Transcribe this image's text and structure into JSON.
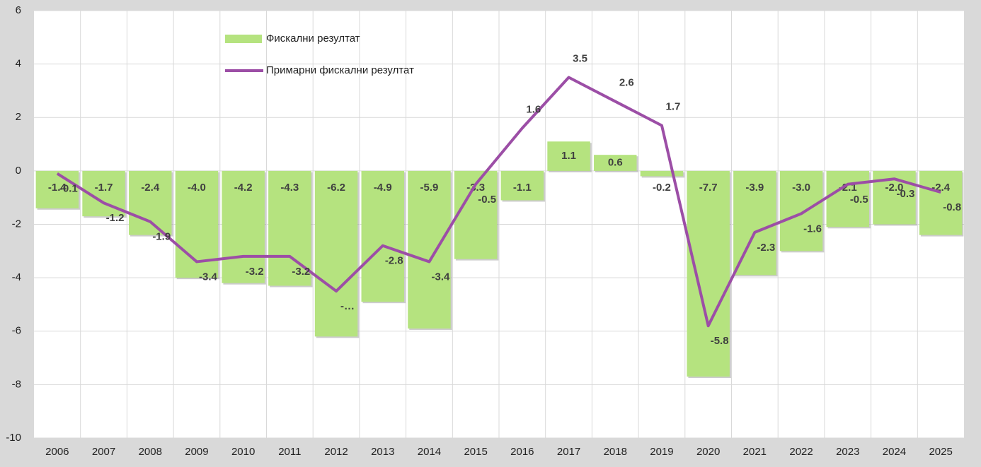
{
  "chart_data": {
    "type": "bar-line",
    "categories": [
      "2006",
      "2007",
      "2008",
      "2009",
      "2010",
      "2011",
      "2012",
      "2013",
      "2014",
      "2015",
      "2016",
      "2017",
      "2018",
      "2019",
      "2020",
      "2021",
      "2022",
      "2023",
      "2024",
      "2025"
    ],
    "series": [
      {
        "name": "Фискални резултат",
        "type": "bar",
        "color": "#b5e37f",
        "values": [
          -1.4,
          -1.7,
          -2.4,
          -4.0,
          -4.2,
          -4.3,
          -6.2,
          -4.9,
          -5.9,
          -3.3,
          -1.1,
          1.1,
          0.6,
          -0.2,
          -7.7,
          -3.9,
          -3.0,
          -2.1,
          -2.0,
          -2.4
        ],
        "value_labels": [
          "-1.4",
          "-1.7",
          "-2.4",
          "-4.0",
          "-4.2",
          "-4.3",
          "-6.2",
          "-4.9",
          "-5.9",
          "-3.3",
          "-1.1",
          "1.1",
          "0.6",
          "-0.2",
          "-7.7",
          "-3.9",
          "-3.0",
          "-2.1",
          "-2.0",
          "-2.4"
        ]
      },
      {
        "name": "Примарни фискални резултат",
        "type": "line",
        "color": "#9c4ea6",
        "values": [
          -0.1,
          -1.2,
          -1.9,
          -3.4,
          -3.2,
          -3.2,
          -4.5,
          -2.8,
          -3.4,
          -0.5,
          1.6,
          3.5,
          2.6,
          1.7,
          -5.8,
          -2.3,
          -1.6,
          -0.5,
          -0.3,
          -0.8
        ],
        "value_labels": [
          "-0.1",
          "-1.2",
          "-1.9",
          "-3.4",
          "-3.2",
          "-3.2",
          "-…",
          "-2.8",
          "-3.4",
          "-0.5",
          "1.6",
          "3.5",
          "2.6",
          "1.7",
          "-5.8",
          "-2.3",
          "-1.6",
          "-0.5",
          "-0.3",
          "-0.8"
        ]
      }
    ],
    "ylim": [
      -10,
      6
    ],
    "yticks": [
      -10,
      -8,
      -6,
      -4,
      -2,
      0,
      2,
      4,
      6
    ],
    "grid": true,
    "legend": "top-left"
  }
}
